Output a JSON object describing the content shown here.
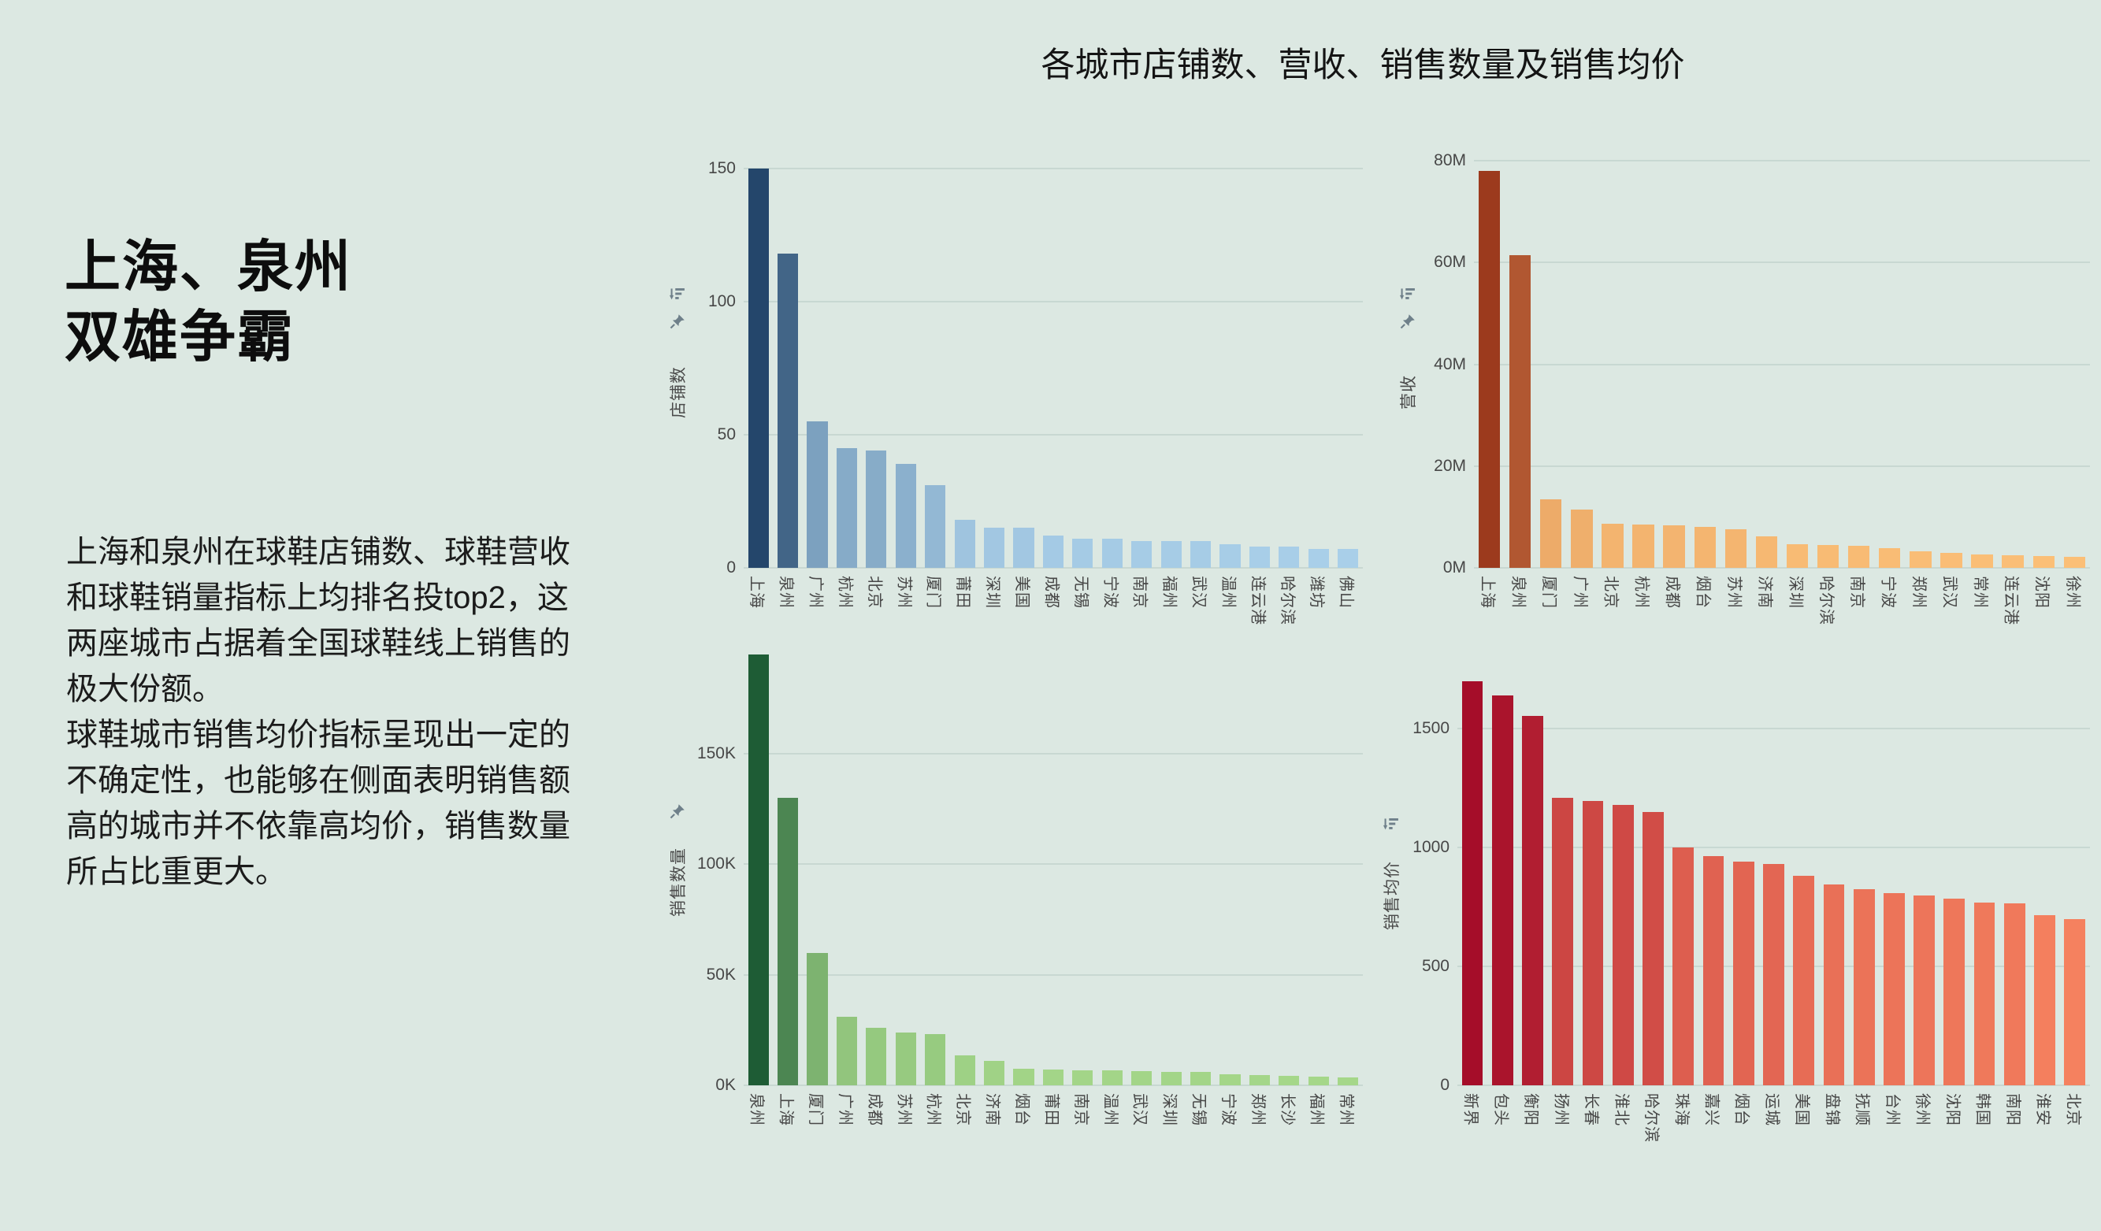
{
  "page": {
    "title": "各城市店铺数、营收、销售数量及销售均价",
    "background": "#dce8e2"
  },
  "sidebar": {
    "heading_lines": [
      "上海、泉州",
      "双雄争霸"
    ],
    "paragraphs": [
      "上海和泉州在球鞋店铺数、球鞋营收和球鞋销量指标上均排名投top2，这两座城市占据着全国球鞋线上销售的极大份额。",
      "球鞋城市销售均价指标呈现出一定的不确定性，也能够在侧面表明销售额高的城市并不依靠高均价，销售数量所占比重更大。"
    ]
  },
  "chart_data": [
    {
      "id": "store-count",
      "type": "bar",
      "title": "",
      "ylabel": "店铺数",
      "icons": [
        "sort-descending-icon",
        "pin-icon"
      ],
      "ymax": 153,
      "tick_values": [
        0,
        50,
        100,
        150
      ],
      "tick_labels": [
        "0",
        "50",
        "100",
        "150"
      ],
      "color_min": "#a9cfe9",
      "color_max": "#24466b",
      "categories": [
        "上海",
        "泉州",
        "广州",
        "杭州",
        "北京",
        "苏州",
        "厦门",
        "莆田",
        "深圳",
        "美国",
        "成都",
        "无锡",
        "宁波",
        "南京",
        "福州",
        "武汉",
        "温州",
        "连云港",
        "哈尔滨",
        "潍坊",
        "佛山"
      ],
      "values": [
        150,
        118,
        55,
        45,
        44,
        39,
        31,
        18,
        15,
        15,
        12,
        11,
        11,
        10,
        10,
        10,
        9,
        8,
        8,
        7,
        7
      ]
    },
    {
      "id": "revenue",
      "type": "bar",
      "title": "",
      "ylabel": "营收",
      "icons": [
        "sort-descending-icon",
        "pin-icon"
      ],
      "ymax": 80,
      "tick_values": [
        0,
        20,
        40,
        60,
        80
      ],
      "tick_labels": [
        "0M",
        "20M",
        "40M",
        "60M",
        "80M"
      ],
      "color_min": "#fbbf77",
      "color_max": "#9c3a1d",
      "categories": [
        "上海",
        "泉州",
        "厦门",
        "广州",
        "北京",
        "杭州",
        "成都",
        "烟台",
        "苏州",
        "济南",
        "深圳",
        "哈尔滨",
        "南京",
        "宁波",
        "郑州",
        "武汉",
        "常州",
        "连云港",
        "沈阳",
        "徐州"
      ],
      "values": [
        78,
        61.5,
        13.5,
        11.5,
        8.6,
        8.5,
        8.3,
        8.0,
        7.6,
        6.2,
        4.6,
        4.5,
        4.3,
        3.8,
        3.3,
        3.0,
        2.7,
        2.5,
        2.3,
        2.1
      ]
    },
    {
      "id": "sales-quantity",
      "type": "bar",
      "title": "",
      "ylabel": "销售数量",
      "icons": [
        "pin-icon"
      ],
      "ymax": 197,
      "tick_values": [
        0,
        50,
        100,
        150
      ],
      "tick_labels": [
        "0K",
        "50K",
        "100K",
        "150K"
      ],
      "color_min": "#a5d789",
      "color_max": "#1e5c35",
      "categories": [
        "泉州",
        "上海",
        "厦门",
        "广州",
        "成都",
        "苏州",
        "杭州",
        "北京",
        "济南",
        "烟台",
        "莆田",
        "南京",
        "温州",
        "武汉",
        "深圳",
        "无锡",
        "宁波",
        "郑州",
        "长沙",
        "福州",
        "常州"
      ],
      "values": [
        195,
        130,
        60,
        31,
        26,
        24,
        23,
        13.5,
        11,
        7.5,
        7,
        6.8,
        6.6,
        6.4,
        6.2,
        6.0,
        5.0,
        4.6,
        4.3,
        3.9,
        3.6
      ]
    },
    {
      "id": "avg-price",
      "type": "bar",
      "title": "",
      "ylabel": "销售均价",
      "icons": [
        "sort-descending-icon"
      ],
      "ymax": 1720,
      "tick_values": [
        0,
        500,
        1000,
        1500
      ],
      "tick_labels": [
        "0",
        "500",
        "1000",
        "1500"
      ],
      "color_min": "#f5815f",
      "color_max": "#a50d29",
      "categories": [
        "新界",
        "包头",
        "衡阳",
        "扬州",
        "长春",
        "淮北",
        "哈尔滨",
        "珠海",
        "嘉兴",
        "烟台",
        "运城",
        "美国",
        "盘锦",
        "抚顺",
        "台州",
        "徐州",
        "沈阳",
        "韩国",
        "南阳",
        "淮安",
        "北京"
      ],
      "values": [
        1700,
        1640,
        1555,
        1210,
        1195,
        1180,
        1150,
        1000,
        965,
        940,
        930,
        880,
        845,
        825,
        810,
        800,
        785,
        770,
        765,
        715,
        700
      ]
    }
  ]
}
